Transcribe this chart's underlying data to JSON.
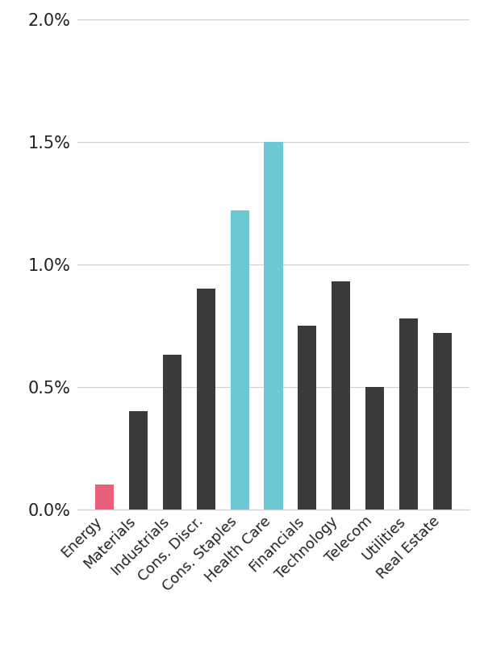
{
  "categories": [
    "Energy",
    "Materials",
    "Industrials",
    "Cons. Discr.",
    "Cons. Staples",
    "Health Care",
    "Financials",
    "Technology",
    "Telecom",
    "Utilities",
    "Real Estate"
  ],
  "values": [
    0.001,
    0.004,
    0.0063,
    0.009,
    0.0122,
    0.015,
    0.0075,
    0.0093,
    0.005,
    0.0078,
    0.0072
  ],
  "bar_colors": [
    "#e8607a",
    "#3a3a3a",
    "#3a3a3a",
    "#3a3a3a",
    "#6dc8d4",
    "#6dc8d4",
    "#3a3a3a",
    "#3a3a3a",
    "#3a3a3a",
    "#3a3a3a",
    "#3a3a3a"
  ],
  "ylim": [
    0,
    0.02
  ],
  "yticks": [
    0.0,
    0.005,
    0.01,
    0.015,
    0.02
  ],
  "ytick_labels": [
    "0.0%",
    "0.5%",
    "1.0%",
    "1.5%",
    "2.0%"
  ],
  "background_color": "#ffffff",
  "grid_color": "#d0d0d0",
  "bar_width": 0.55,
  "ylabel_fontsize": 15,
  "xlabel_fontsize": 13
}
